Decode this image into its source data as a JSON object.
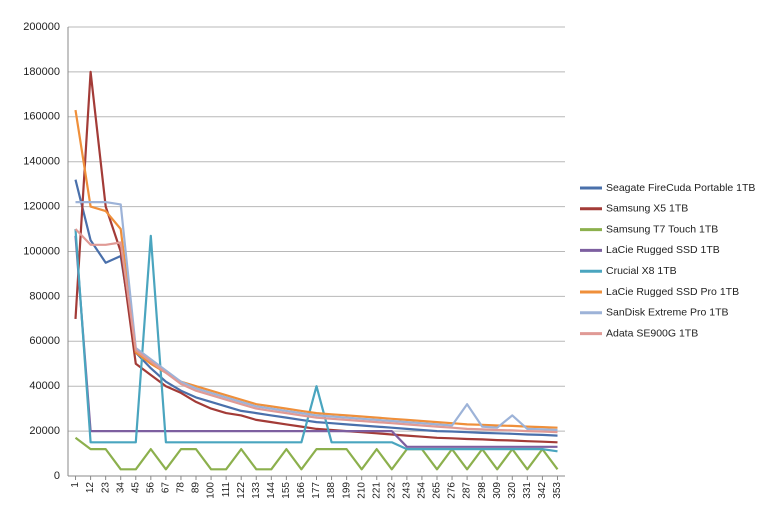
{
  "chart_data": {
    "type": "line",
    "categories": [
      "1",
      "12",
      "23",
      "34",
      "45",
      "56",
      "67",
      "78",
      "89",
      "100",
      "111",
      "122",
      "133",
      "144",
      "155",
      "166",
      "177",
      "188",
      "199",
      "210",
      "221",
      "232",
      "243",
      "254",
      "265",
      "276",
      "287",
      "298",
      "309",
      "320",
      "331",
      "342",
      "353"
    ],
    "ylim": [
      0,
      200000
    ],
    "yticks": [
      0,
      20000,
      40000,
      60000,
      80000,
      100000,
      120000,
      140000,
      160000,
      180000,
      200000
    ],
    "grid": true,
    "legend": "right",
    "series": [
      {
        "name": "Seagate FireCuda Portable 1TB",
        "color": "#4a70ab",
        "values": [
          132000,
          105000,
          95000,
          98000,
          55000,
          48000,
          42000,
          38000,
          35000,
          33000,
          31000,
          29000,
          28000,
          27000,
          26000,
          25000,
          24000,
          23500,
          23000,
          22500,
          22000,
          21500,
          21000,
          20500,
          20000,
          19800,
          19500,
          19200,
          19000,
          18800,
          18500,
          18300,
          18000
        ]
      },
      {
        "name": "Samsung X5 1TB",
        "color": "#a33b37",
        "values": [
          70000,
          180000,
          120000,
          100000,
          50000,
          45000,
          40000,
          37000,
          33000,
          30000,
          28000,
          27000,
          25000,
          24000,
          23000,
          22000,
          21000,
          20500,
          20000,
          19500,
          19000,
          18500,
          18000,
          17500,
          17000,
          16800,
          16500,
          16300,
          16000,
          15800,
          15500,
          15300,
          15000
        ]
      },
      {
        "name": "Samsung T7 Touch 1TB",
        "color": "#8cb04d",
        "values": [
          17000,
          12000,
          12000,
          3000,
          3000,
          12000,
          3000,
          12000,
          12000,
          3000,
          3000,
          12000,
          3000,
          3000,
          12000,
          3000,
          12000,
          12000,
          12000,
          3000,
          12000,
          3000,
          12000,
          12000,
          3000,
          12000,
          3000,
          12000,
          3000,
          12000,
          3000,
          12000,
          3000
        ]
      },
      {
        "name": "LaCie Rugged SSD 1TB",
        "color": "#7d5fa0",
        "values": [
          107000,
          20000,
          20000,
          20000,
          20000,
          20000,
          20000,
          20000,
          20000,
          20000,
          20000,
          20000,
          20000,
          20000,
          20000,
          20000,
          20000,
          20000,
          20000,
          20000,
          20000,
          20000,
          13000,
          13000,
          13000,
          13000,
          13000,
          13000,
          13000,
          13000,
          13000,
          13000,
          13000
        ]
      },
      {
        "name": "Crucial X8 1TB",
        "color": "#4aa5bf",
        "values": [
          110000,
          15000,
          15000,
          15000,
          15000,
          107000,
          15000,
          15000,
          15000,
          15000,
          15000,
          15000,
          15000,
          15000,
          15000,
          15000,
          40000,
          15000,
          15000,
          15000,
          15000,
          15000,
          12000,
          12000,
          12000,
          12000,
          12000,
          12000,
          12000,
          12000,
          12000,
          12000,
          11000
        ]
      },
      {
        "name": "LaCie Rugged SSD Pro 1TB",
        "color": "#ef8f3a",
        "values": [
          163000,
          120000,
          118000,
          110000,
          55000,
          50000,
          46000,
          42000,
          40000,
          38000,
          36000,
          34000,
          32000,
          31000,
          30000,
          29000,
          28000,
          27500,
          27000,
          26500,
          26000,
          25500,
          25000,
          24500,
          24000,
          23500,
          23000,
          22800,
          22500,
          22300,
          22000,
          21800,
          21500
        ]
      },
      {
        "name": "SanDisk Extreme Pro 1TB",
        "color": "#9db3d8",
        "values": [
          122000,
          122000,
          122000,
          121000,
          57000,
          52000,
          47000,
          42000,
          39000,
          37000,
          35000,
          33000,
          31000,
          30000,
          29000,
          28000,
          27000,
          26500,
          26000,
          25500,
          25000,
          24500,
          24000,
          23500,
          23000,
          22500,
          32000,
          22000,
          21500,
          27000,
          21000,
          20800,
          20500
        ]
      },
      {
        "name": "Adata SE900G 1TB",
        "color": "#e09a95",
        "values": [
          110000,
          103000,
          103000,
          104000,
          56000,
          51000,
          46000,
          41000,
          38000,
          36000,
          34000,
          32000,
          30000,
          29000,
          28000,
          27000,
          26000,
          25500,
          25000,
          24500,
          24000,
          23500,
          23000,
          22500,
          22000,
          21500,
          21000,
          20800,
          20500,
          20300,
          20000,
          19800,
          19500
        ]
      }
    ]
  }
}
